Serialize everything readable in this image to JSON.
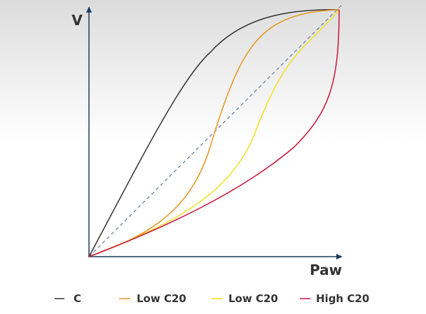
{
  "axes": {
    "y_label": "V",
    "x_label": "Paw"
  },
  "legend": [
    {
      "label": "C"
    },
    {
      "label": "Low C20"
    },
    {
      "label": "Low C20"
    },
    {
      "label": "High C20"
    }
  ]
}
